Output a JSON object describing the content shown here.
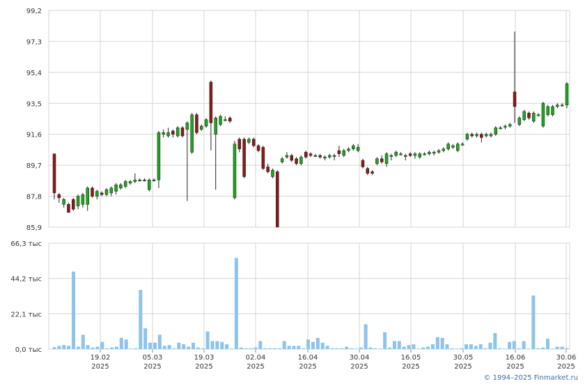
{
  "copyright": "© 1994–2025 Finmarket.ru",
  "colors": {
    "up": "#1ea61e",
    "down": "#8b1a1a",
    "volume": "#8ec3ea",
    "grid": "#d4d4d4",
    "wick": "#222222"
  },
  "chart_data": [
    {
      "type": "candlestick",
      "title": "",
      "ylim": [
        85.9,
        99.2
      ],
      "y_ticks": [
        "99,2",
        "97,3",
        "95,4",
        "93,5",
        "91,6",
        "89,7",
        "87,8",
        "85,9"
      ],
      "x_ticks": [
        {
          "day": "19.02",
          "year": "2025"
        },
        {
          "day": "05.03",
          "year": "2025"
        },
        {
          "day": "19.03",
          "year": "2025"
        },
        {
          "day": "02.04",
          "year": "2025"
        },
        {
          "day": "16.04",
          "year": "2025"
        },
        {
          "day": "30.04",
          "year": "2025"
        },
        {
          "day": "16.05",
          "year": "2025"
        },
        {
          "day": "30.05",
          "year": "2025"
        },
        {
          "day": "16.06",
          "year": "2025"
        },
        {
          "day": "30.06",
          "year": "2025"
        }
      ],
      "candles": [
        [
          90.4,
          88.0,
          87.6,
          90.4
        ],
        [
          87.9,
          87.7,
          87.4,
          88.0
        ],
        [
          87.3,
          87.6,
          87.1,
          87.7
        ],
        [
          87.3,
          86.8,
          86.8,
          87.4
        ],
        [
          87.6,
          87.0,
          86.9,
          87.7
        ],
        [
          87.2,
          87.8,
          87.0,
          87.9
        ],
        [
          87.3,
          87.9,
          87.1,
          88.0
        ],
        [
          87.3,
          88.3,
          86.9,
          88.4
        ],
        [
          88.3,
          87.8,
          87.7,
          88.4
        ],
        [
          87.8,
          88.1,
          87.6,
          88.2
        ],
        [
          88.0,
          87.9,
          87.8,
          88.1
        ],
        [
          87.9,
          88.2,
          87.8,
          88.3
        ],
        [
          88.0,
          88.3,
          87.8,
          88.4
        ],
        [
          88.1,
          88.5,
          87.9,
          88.6
        ],
        [
          88.3,
          88.5,
          88.2,
          88.6
        ],
        [
          88.4,
          88.7,
          88.3,
          88.8
        ],
        [
          88.6,
          88.7,
          88.5,
          88.8
        ],
        [
          88.7,
          88.8,
          88.6,
          89.2
        ],
        [
          88.8,
          88.8,
          88.7,
          88.9
        ],
        [
          88.8,
          88.8,
          88.7,
          88.9
        ],
        [
          88.2,
          88.8,
          88.1,
          88.9
        ],
        [
          88.8,
          88.8,
          88.7,
          88.9
        ],
        [
          88.8,
          91.7,
          88.3,
          91.8
        ],
        [
          91.6,
          91.7,
          91.4,
          91.9
        ],
        [
          91.5,
          91.7,
          91.4,
          92.0
        ],
        [
          91.8,
          91.6,
          91.4,
          91.9
        ],
        [
          91.5,
          92.0,
          91.4,
          92.1
        ],
        [
          92.0,
          91.5,
          91.4,
          92.1
        ],
        [
          91.9,
          92.3,
          87.5,
          92.4
        ],
        [
          90.5,
          92.8,
          90.4,
          92.9
        ],
        [
          92.8,
          91.7,
          91.6,
          92.9
        ],
        [
          91.9,
          92.1,
          91.8,
          92.2
        ],
        [
          92.1,
          92.5,
          92.0,
          92.6
        ],
        [
          94.8,
          92.3,
          90.6,
          94.9
        ],
        [
          91.6,
          92.6,
          88.2,
          92.7
        ],
        [
          92.2,
          92.7,
          92.1,
          92.8
        ],
        [
          92.5,
          92.5,
          92.4,
          92.7
        ],
        [
          92.6,
          92.4,
          92.3,
          92.7
        ],
        [
          87.7,
          91.0,
          87.6,
          91.2
        ],
        [
          91.3,
          90.7,
          90.5,
          91.4
        ],
        [
          91.3,
          89.0,
          88.9,
          91.4
        ],
        [
          91.1,
          91.3,
          91.0,
          91.4
        ],
        [
          91.3,
          90.9,
          90.8,
          91.4
        ],
        [
          90.9,
          90.6,
          90.5,
          91.0
        ],
        [
          90.8,
          89.5,
          89.4,
          90.9
        ],
        [
          89.6,
          89.3,
          89.2,
          89.8
        ],
        [
          89.0,
          89.4,
          88.9,
          89.5
        ],
        [
          89.3,
          85.9,
          85.9,
          89.4
        ],
        [
          89.9,
          90.1,
          89.8,
          90.2
        ],
        [
          90.2,
          90.3,
          90.1,
          90.5
        ],
        [
          90.3,
          90.0,
          89.9,
          90.4
        ],
        [
          90.1,
          89.8,
          89.7,
          90.2
        ],
        [
          89.8,
          90.2,
          89.7,
          90.3
        ],
        [
          90.5,
          90.2,
          90.1,
          90.6
        ],
        [
          90.4,
          90.3,
          90.2,
          90.5
        ],
        [
          90.3,
          90.3,
          90.2,
          90.4
        ],
        [
          90.3,
          90.2,
          90.1,
          90.4
        ],
        [
          90.2,
          90.2,
          90.0,
          90.3
        ],
        [
          90.2,
          90.3,
          90.1,
          90.4
        ],
        [
          90.3,
          90.3,
          90.0,
          90.4
        ],
        [
          90.6,
          90.4,
          90.2,
          90.9
        ],
        [
          90.3,
          90.6,
          90.2,
          90.7
        ],
        [
          90.6,
          90.7,
          90.5,
          90.8
        ],
        [
          90.7,
          90.9,
          90.6,
          91.0
        ],
        [
          90.6,
          90.8,
          90.5,
          91.0
        ],
        [
          90.0,
          89.6,
          89.5,
          90.1
        ],
        [
          89.5,
          89.2,
          89.1,
          89.6
        ],
        [
          89.3,
          89.2,
          89.1,
          89.4
        ],
        [
          89.8,
          90.1,
          89.7,
          90.2
        ],
        [
          90.1,
          89.9,
          89.8,
          90.3
        ],
        [
          89.8,
          90.4,
          89.6,
          90.5
        ],
        [
          90.3,
          90.3,
          90.0,
          90.4
        ],
        [
          90.3,
          90.5,
          90.2,
          90.6
        ],
        [
          90.4,
          90.4,
          90.3,
          90.5
        ],
        [
          90.3,
          90.3,
          90.0,
          90.4
        ],
        [
          90.4,
          90.3,
          90.2,
          90.5
        ],
        [
          90.3,
          90.4,
          90.1,
          90.5
        ],
        [
          90.2,
          90.4,
          90.1,
          90.5
        ],
        [
          90.4,
          90.4,
          90.3,
          90.5
        ],
        [
          90.4,
          90.5,
          90.3,
          90.6
        ],
        [
          90.5,
          90.5,
          90.3,
          90.6
        ],
        [
          90.5,
          90.6,
          90.4,
          90.7
        ],
        [
          90.6,
          90.7,
          90.5,
          90.8
        ],
        [
          90.7,
          91.0,
          90.6,
          91.1
        ],
        [
          90.8,
          90.9,
          90.7,
          91.0
        ],
        [
          90.6,
          91.0,
          90.5,
          91.1
        ],
        [
          91.0,
          91.0,
          90.9,
          91.1
        ],
        [
          91.3,
          91.6,
          91.2,
          91.7
        ],
        [
          91.6,
          91.5,
          91.4,
          91.7
        ],
        [
          91.5,
          91.6,
          91.4,
          91.7
        ],
        [
          91.6,
          91.4,
          91.1,
          91.7
        ],
        [
          91.5,
          91.6,
          91.4,
          91.7
        ],
        [
          91.5,
          91.6,
          91.4,
          91.7
        ],
        [
          91.6,
          92.0,
          91.5,
          92.1
        ],
        [
          92.0,
          92.0,
          91.9,
          92.1
        ],
        [
          92.1,
          92.1,
          91.9,
          92.2
        ],
        [
          92.1,
          92.2,
          92.0,
          92.3
        ],
        [
          94.2,
          93.3,
          92.3,
          97.9
        ],
        [
          92.2,
          92.6,
          92.1,
          92.7
        ],
        [
          92.5,
          93.0,
          92.4,
          93.1
        ],
        [
          92.9,
          92.6,
          92.5,
          93.0
        ],
        [
          92.4,
          92.9,
          92.3,
          93.0
        ],
        [
          92.8,
          92.8,
          92.7,
          92.9
        ],
        [
          92.1,
          93.5,
          92.0,
          93.6
        ],
        [
          92.8,
          93.3,
          92.7,
          93.4
        ],
        [
          92.8,
          93.3,
          92.7,
          93.4
        ],
        [
          93.3,
          93.4,
          93.2,
          93.5
        ],
        [
          93.4,
          93.4,
          93.3,
          93.5
        ],
        [
          93.4,
          94.7,
          93.2,
          94.8
        ]
      ]
    },
    {
      "type": "bar",
      "title": "",
      "ylim": [
        0,
        66.3
      ],
      "y_ticks": [
        "66,3 тыс",
        "44,2 тыс",
        "22,1 тыс",
        "0,0 тыс"
      ],
      "values": [
        1.2,
        2.0,
        2.5,
        2.0,
        48.5,
        1.5,
        9.0,
        2.5,
        1.0,
        1.5,
        4.5,
        0.5,
        1.0,
        1.5,
        7.0,
        6.0,
        0.3,
        0.5,
        37.0,
        13.0,
        4.0,
        4.0,
        9.0,
        2.0,
        2.5,
        0.5,
        4.0,
        3.0,
        1.5,
        4.0,
        1.0,
        0.5,
        11.0,
        5.0,
        5.0,
        4.5,
        3.0,
        0.3,
        57.0,
        1.0,
        0.5,
        0.5,
        1.0,
        5.0,
        0.5,
        0.5,
        0.5,
        0.5,
        5.0,
        2.0,
        2.0,
        2.0,
        0.5,
        6.0,
        4.5,
        7.0,
        4.0,
        2.0,
        0.5,
        0.5,
        0.5,
        1.5,
        0.5,
        0.3,
        1.0,
        15.5,
        1.0,
        0.5,
        0.3,
        10.5,
        1.0,
        5.0,
        5.0,
        1.5,
        2.5,
        3.0,
        0.3,
        1.0,
        1.5,
        3.0,
        7.5,
        7.0,
        3.0,
        0.5,
        0.3,
        0.5,
        3.0,
        3.0,
        2.0,
        3.0,
        0.5,
        4.0,
        10.0,
        0.5,
        0.3,
        4.5,
        5.0,
        0.5,
        5.0,
        0.3,
        33.5,
        0.5,
        1.0,
        6.5,
        0.3,
        1.5,
        1.5,
        0.5
      ]
    }
  ]
}
